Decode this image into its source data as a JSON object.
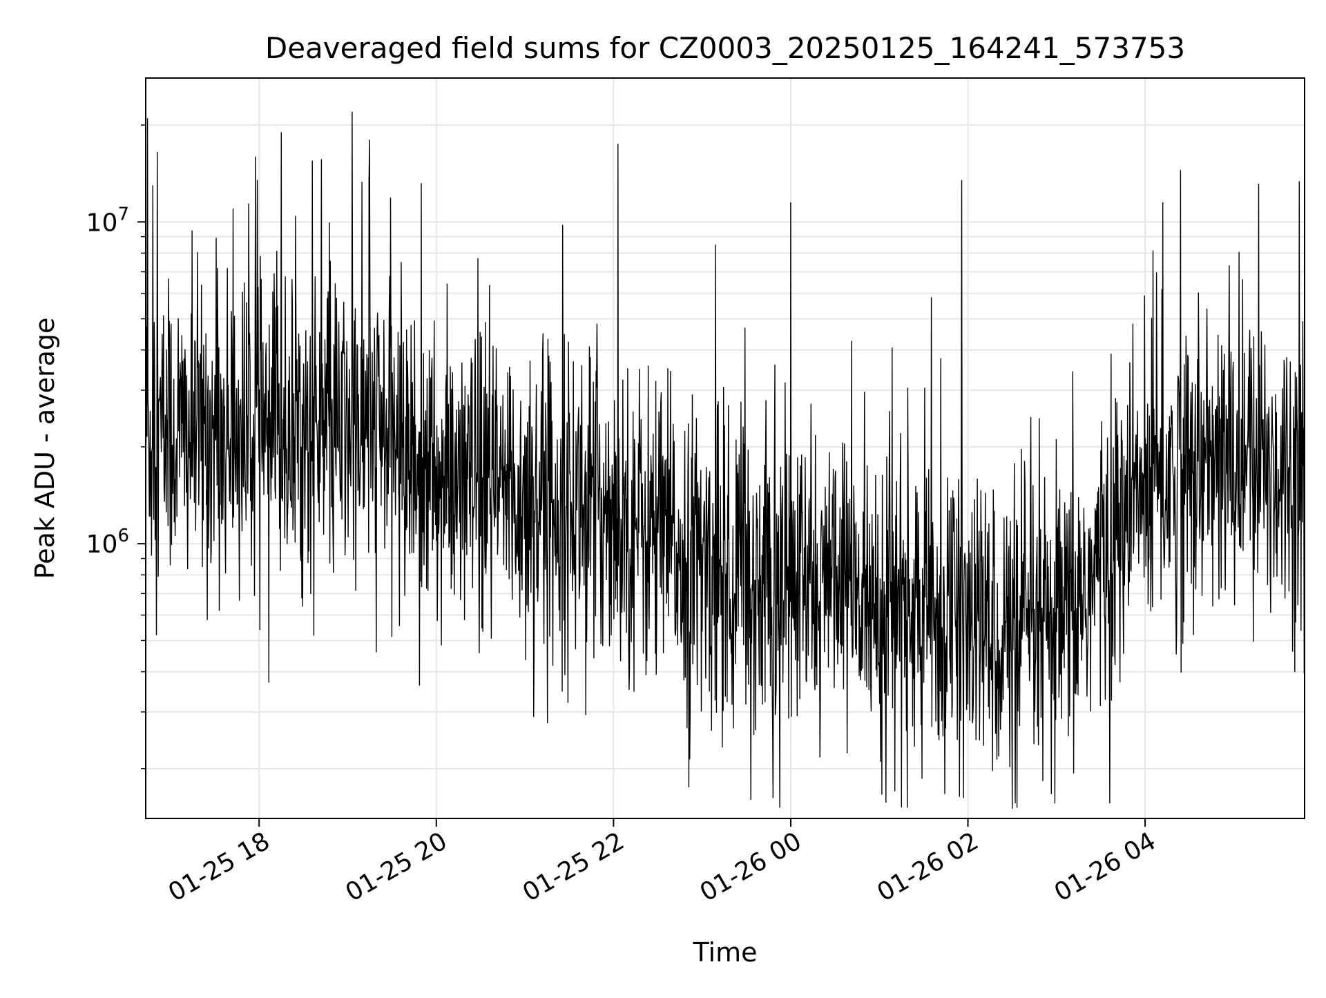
{
  "chart_data": {
    "type": "line",
    "title": "Deaveraged field sums for CZ0003_20250125_164241_573753",
    "xlabel": "Time",
    "ylabel": "Peak ADU - average",
    "x_tick_labels": [
      "01-25 18",
      "01-25 20",
      "01-25 22",
      "01-26 00",
      "01-26 02",
      "01-26 04"
    ],
    "x_ticks_hours": [
      18,
      20,
      22,
      24,
      26,
      28
    ],
    "xlim_hours": [
      16.72,
      29.8
    ],
    "x_unit_note": "hours since 2025-01-25 00:00",
    "y_scale": "log",
    "ylim": [
      140000,
      28000000
    ],
    "y_major_ticks": [
      1000000,
      10000000
    ],
    "y_tick_labels": [
      {
        "base": "10",
        "exp": "6"
      },
      {
        "base": "10",
        "exp": "7"
      }
    ],
    "grid": true,
    "legend": "none",
    "series": [
      {
        "color": "#000000",
        "profile_hours": [
          16.72,
          17.5,
          18.5,
          19.5,
          20.0,
          21.0,
          22.0,
          23.0,
          24.0,
          25.0,
          26.0,
          27.0,
          28.0,
          29.0,
          29.8
        ],
        "profile_values": [
          2200000,
          2200000,
          2200000,
          2200000,
          1500000,
          1400000,
          1300000,
          850000,
          750000,
          650000,
          550000,
          500000,
          1500000,
          1800000,
          1700000
        ],
        "spikes": [
          {
            "x": 16.74,
            "y": 21000000
          },
          {
            "x": 16.8,
            "y": 13000000
          },
          {
            "x": 16.85,
            "y": 16500000
          },
          {
            "x": 18.25,
            "y": 19000000
          },
          {
            "x": 18.6,
            "y": 15500000
          },
          {
            "x": 19.05,
            "y": 22000000
          },
          {
            "x": 17.98,
            "y": 13500000
          },
          {
            "x": 19.24,
            "y": 13500000
          },
          {
            "x": 22.05,
            "y": 17500000
          },
          {
            "x": 24.0,
            "y": 11500000
          },
          {
            "x": 25.93,
            "y": 13500000
          },
          {
            "x": 28.4,
            "y": 14500000
          },
          {
            "x": 28.2,
            "y": 11500000
          },
          {
            "x": 23.15,
            "y": 8500000
          }
        ],
        "dips": [
          {
            "x": 18.11,
            "y": 370000
          },
          {
            "x": 22.85,
            "y": 175000
          },
          {
            "x": 23.55,
            "y": 160000
          },
          {
            "x": 23.8,
            "y": 162000
          },
          {
            "x": 25.95,
            "y": 162000
          },
          {
            "x": 26.5,
            "y": 150000
          }
        ]
      }
    ]
  }
}
